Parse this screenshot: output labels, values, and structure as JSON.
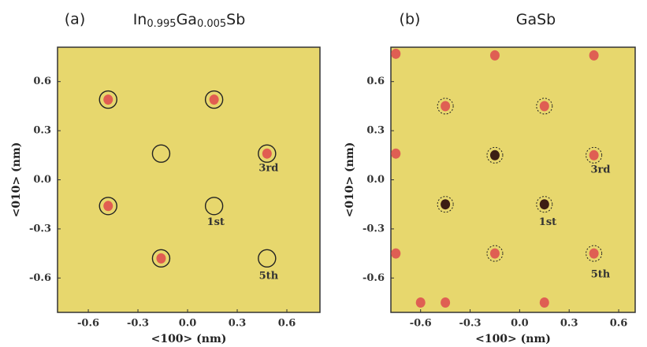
{
  "chart_data": [
    {
      "type": "spots",
      "panel_label": "(a)",
      "title": [
        {
          "text": "In"
        },
        {
          "text": "0.995",
          "sub": true
        },
        {
          "text": "Ga"
        },
        {
          "text": "0.005",
          "sub": true
        },
        {
          "text": "Sb"
        }
      ],
      "x_label": "<100> (nm)",
      "y_label": "<010> (nm)",
      "background": "#e7d76d",
      "xlim": [
        -0.786,
        0.8
      ],
      "ylim": [
        -0.81,
        0.81
      ],
      "xticks": [
        -0.6,
        -0.3,
        {
          "value": 0,
          "label": "0.0"
        },
        0.3,
        0.6
      ],
      "yticks": [
        -0.6,
        -0.3,
        {
          "value": 0,
          "label": "0.0"
        },
        0.3,
        0.6
      ],
      "series": [
        {
          "color": "#e0504e",
          "x": [
            -0.48,
            0.16,
            0.48,
            -0.48,
            -0.16
          ],
          "y": [
            0.49,
            0.49,
            0.16,
            -0.16,
            -0.48
          ]
        }
      ],
      "circles": {
        "style": "solid",
        "x": [
          -0.48,
          0.16,
          -0.16,
          0.48,
          -0.48,
          0.16,
          -0.16,
          0.48
        ],
        "y": [
          0.49,
          0.49,
          0.16,
          0.16,
          -0.16,
          -0.16,
          -0.48,
          -0.48
        ]
      },
      "annotations": [
        {
          "text": "3rd",
          "x": 0.49,
          "y": 0.07
        },
        {
          "text": "1st",
          "x": 0.17,
          "y": -0.26
        },
        {
          "text": "5th",
          "x": 0.49,
          "y": -0.59
        }
      ]
    },
    {
      "type": "spots",
      "panel_label": "(b)",
      "title": [
        {
          "text": "GaSb"
        }
      ],
      "x_label": "<100> (nm)",
      "y_label": "<010> (nm)",
      "background": "#e7d76d",
      "xlim": [
        -0.78,
        0.7
      ],
      "ylim": [
        -0.81,
        0.81
      ],
      "xticks": [
        -0.6,
        -0.3,
        {
          "value": 0,
          "label": "0.0"
        },
        0.3,
        0.6
      ],
      "yticks": [
        -0.6,
        -0.3,
        {
          "value": 0,
          "label": "0.0"
        },
        0.3,
        0.6
      ],
      "series": [
        {
          "color": "#de5250",
          "x": [
            -0.45,
            0.15,
            0.45,
            -0.15,
            0.45,
            -0.75,
            -0.15,
            0.45,
            -0.75,
            -0.75,
            -0.6,
            -0.45,
            0.15
          ],
          "y": [
            0.45,
            0.45,
            0.15,
            -0.45,
            -0.45,
            0.77,
            0.76,
            0.76,
            0.16,
            -0.45,
            -0.75,
            -0.75,
            -0.75
          ]
        },
        {
          "color": "#2a0a0a",
          "x": [
            -0.15,
            -0.45,
            0.15
          ],
          "y": [
            0.15,
            -0.15,
            -0.15
          ]
        }
      ],
      "circles": {
        "style": "dashed",
        "x": [
          -0.45,
          0.15,
          -0.15,
          0.45,
          -0.45,
          0.15,
          -0.15,
          0.45
        ],
        "y": [
          0.45,
          0.45,
          0.15,
          0.15,
          -0.15,
          -0.15,
          -0.45,
          -0.45
        ]
      },
      "annotations": [
        {
          "text": "3rd",
          "x": 0.49,
          "y": 0.06
        },
        {
          "text": "1st",
          "x": 0.17,
          "y": -0.26
        },
        {
          "text": "5th",
          "x": 0.49,
          "y": -0.58
        }
      ]
    }
  ]
}
